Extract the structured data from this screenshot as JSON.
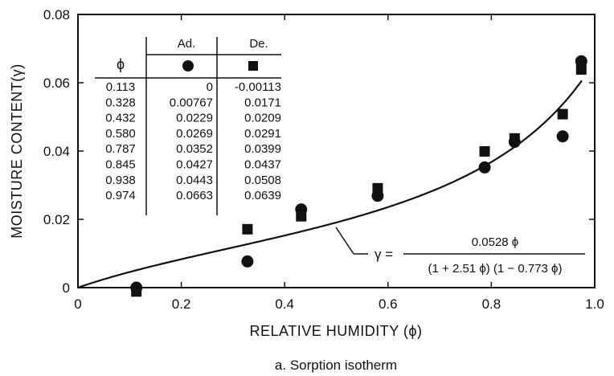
{
  "chart_data": {
    "type": "scatter",
    "title": "",
    "caption": "a. Sorption isotherm",
    "xlabel": "RELATIVE  HUMIDITY (ϕ)",
    "ylabel": "MOISTURE CONTENT(γ)",
    "xlim": [
      0,
      1.0
    ],
    "ylim": [
      0,
      0.08
    ],
    "xticks": [
      0,
      0.2,
      0.4,
      0.6,
      0.8,
      1.0
    ],
    "xtick_labels": [
      "0",
      "0.2",
      "0.4",
      "0.6",
      "0.8",
      "1.0"
    ],
    "yticks": [
      0,
      0.02,
      0.04,
      0.06,
      0.08
    ],
    "ytick_labels": [
      "0",
      "0.02",
      "0.04",
      "0.06",
      "0.08"
    ],
    "grid": false,
    "series": [
      {
        "name": "Ad.",
        "marker": "circle",
        "x": [
          0.113,
          0.328,
          0.432,
          0.58,
          0.787,
          0.845,
          0.938,
          0.974
        ],
        "y": [
          0,
          0.00767,
          0.0229,
          0.0269,
          0.0352,
          0.0427,
          0.0443,
          0.0663
        ]
      },
      {
        "name": "De.",
        "marker": "square",
        "x": [
          0.113,
          0.328,
          0.432,
          0.58,
          0.787,
          0.845,
          0.938,
          0.974
        ],
        "y": [
          -0.00113,
          0.0171,
          0.0209,
          0.0291,
          0.0399,
          0.0437,
          0.0508,
          0.0639
        ]
      }
    ],
    "fit_curve": {
      "coef_a": 0.0528,
      "coef_b": 2.51,
      "coef_c": 0.773,
      "lhs": "γ =",
      "numerator": "0.0528 ϕ",
      "denominator": "(1 + 2.51 ϕ) (1 − 0.773 ϕ)"
    },
    "table": {
      "col_phi": "ϕ",
      "col_ad": "Ad.",
      "col_de": "De.",
      "rows": [
        {
          "phi": "0.113",
          "ad": "0",
          "de": "-0.00113"
        },
        {
          "phi": "0.328",
          "ad": "0.00767",
          "de": "0.0171"
        },
        {
          "phi": "0.432",
          "ad": "0.0229",
          "de": "0.0209"
        },
        {
          "phi": "0.580",
          "ad": "0.0269",
          "de": "0.0291"
        },
        {
          "phi": "0.787",
          "ad": "0.0352",
          "de": "0.0399"
        },
        {
          "phi": "0.845",
          "ad": "0.0427",
          "de": "0.0437"
        },
        {
          "phi": "0.938",
          "ad": "0.0443",
          "de": "0.0508"
        },
        {
          "phi": "0.974",
          "ad": "0.0663",
          "de": "0.0639"
        }
      ]
    }
  }
}
